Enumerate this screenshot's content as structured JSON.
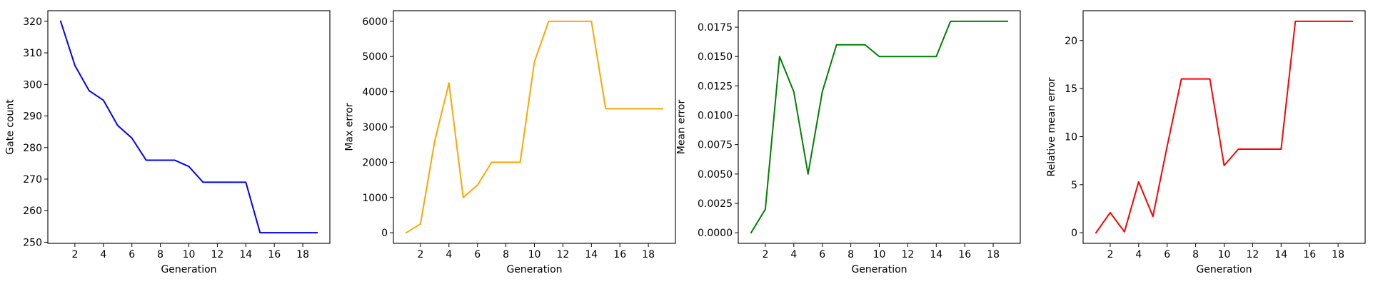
{
  "chart_data": [
    {
      "type": "line",
      "xlabel": "Generation",
      "ylabel": "Gate count",
      "xlim": [
        0.1,
        19.9
      ],
      "ylim": [
        249.65,
        323.35
      ],
      "xticks": [
        2,
        4,
        6,
        8,
        10,
        12,
        14,
        16,
        18
      ],
      "yticks": [
        250,
        260,
        270,
        280,
        290,
        300,
        310,
        320
      ],
      "yticklabels": [
        "250",
        "260",
        "270",
        "280",
        "290",
        "300",
        "310",
        "320"
      ],
      "grid": false,
      "series": [
        {
          "color": "#0000ff",
          "x": [
            1,
            2,
            3,
            4,
            5,
            6,
            7,
            8,
            9,
            10,
            11,
            12,
            13,
            14,
            15,
            16,
            17,
            18,
            19
          ],
          "y": [
            320,
            306,
            298,
            295,
            287,
            283,
            276,
            276,
            276,
            274,
            269,
            269,
            269,
            269,
            253,
            253,
            253,
            253,
            253
          ]
        }
      ]
    },
    {
      "type": "line",
      "xlabel": "Generation",
      "ylabel": "Max error",
      "xlim": [
        0.1,
        19.9
      ],
      "ylim": [
        -300,
        6300
      ],
      "xticks": [
        2,
        4,
        6,
        8,
        10,
        12,
        14,
        16,
        18
      ],
      "yticks": [
        0,
        1000,
        2000,
        3000,
        4000,
        5000,
        6000
      ],
      "yticklabels": [
        "0",
        "1000",
        "2000",
        "3000",
        "4000",
        "5000",
        "6000"
      ],
      "grid": false,
      "series": [
        {
          "color": "#ffa500",
          "x": [
            1,
            2,
            3,
            4,
            5,
            6,
            7,
            8,
            9,
            10,
            11,
            12,
            13,
            14,
            15,
            16,
            17,
            18,
            19
          ],
          "y": [
            0,
            250,
            2600,
            4250,
            1000,
            1350,
            2000,
            2000,
            2000,
            4850,
            6000,
            6000,
            6000,
            6000,
            3520,
            3520,
            3520,
            3520,
            3520
          ]
        }
      ]
    },
    {
      "type": "line",
      "xlabel": "Generation",
      "ylabel": "Mean error",
      "xlim": [
        0.1,
        19.9
      ],
      "ylim": [
        -0.0009,
        0.0189
      ],
      "xticks": [
        2,
        4,
        6,
        8,
        10,
        12,
        14,
        16,
        18
      ],
      "yticks": [
        0,
        0.0025,
        0.005,
        0.0075,
        0.01,
        0.0125,
        0.015,
        0.0175
      ],
      "yticklabels": [
        "0.0000",
        "0.0025",
        "0.0050",
        "0.0075",
        "0.0100",
        "0.0125",
        "0.0150",
        "0.0175"
      ],
      "grid": false,
      "series": [
        {
          "color": "#008000",
          "x": [
            1,
            2,
            3,
            4,
            5,
            6,
            7,
            8,
            9,
            10,
            11,
            12,
            13,
            14,
            15,
            16,
            17,
            18,
            19
          ],
          "y": [
            0,
            0.002,
            0.015,
            0.012,
            0.005,
            0.012,
            0.016,
            0.016,
            0.016,
            0.015,
            0.015,
            0.015,
            0.015,
            0.015,
            0.018,
            0.018,
            0.018,
            0.018,
            0.018
          ]
        }
      ]
    },
    {
      "type": "line",
      "xlabel": "Generation",
      "ylabel": "Relative mean error",
      "xlim": [
        0.1,
        19.9
      ],
      "ylim": [
        -1.1,
        23.1
      ],
      "xticks": [
        2,
        4,
        6,
        8,
        10,
        12,
        14,
        16,
        18
      ],
      "yticks": [
        0,
        5,
        10,
        15,
        20
      ],
      "yticklabels": [
        "0",
        "5",
        "10",
        "15",
        "20"
      ],
      "grid": false,
      "series": [
        {
          "color": "#ff0000",
          "x": [
            1,
            2,
            3,
            4,
            5,
            6,
            7,
            8,
            9,
            10,
            11,
            12,
            13,
            14,
            15,
            16,
            17,
            18,
            19
          ],
          "y": [
            0,
            2.1,
            0.1,
            5.3,
            1.7,
            9,
            16,
            16,
            16,
            7,
            8.7,
            8.7,
            8.7,
            8.7,
            22,
            22,
            22,
            22,
            22
          ]
        }
      ]
    }
  ]
}
